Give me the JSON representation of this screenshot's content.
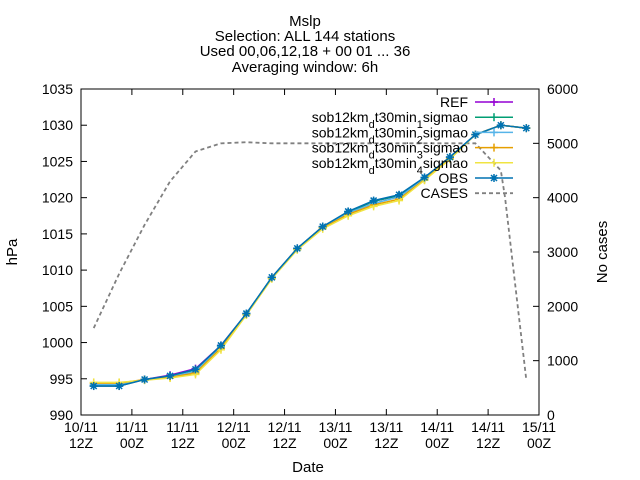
{
  "chart_data": {
    "type": "line",
    "title_lines": [
      "Mslp",
      "Selection: ALL     144 stations",
      "Used 00,06,12,18 + 00 01 ... 36",
      "Averaging window:  6h"
    ],
    "xlabel": "Date",
    "ylabel": "hPa",
    "y2label": "No cases",
    "x_tick_labels": [
      [
        "10/11",
        "12Z"
      ],
      [
        "11/11",
        "00Z"
      ],
      [
        "11/11",
        "12Z"
      ],
      [
        "12/11",
        "00Z"
      ],
      [
        "12/11",
        "12Z"
      ],
      [
        "13/11",
        "00Z"
      ],
      [
        "13/11",
        "12Z"
      ],
      [
        "14/11",
        "00Z"
      ],
      [
        "14/11",
        "12Z"
      ],
      [
        "15/11",
        "00Z"
      ]
    ],
    "x_range_hours": [
      0,
      108
    ],
    "ylim": [
      990,
      1035
    ],
    "yticks": [
      990,
      995,
      1000,
      1005,
      1010,
      1015,
      1020,
      1025,
      1030,
      1035
    ],
    "y2lim": [
      0,
      6000
    ],
    "y2ticks": [
      0,
      1000,
      2000,
      3000,
      4000,
      5000,
      6000
    ],
    "legend_position": "top-right",
    "x": [
      3,
      9,
      15,
      21,
      27,
      33,
      39,
      45,
      51,
      57,
      63,
      69,
      75,
      81,
      87,
      93,
      99,
      105
    ],
    "series": [
      {
        "name": "REF",
        "color": "#9400d3",
        "marker": "plus",
        "values": [
          994.0,
          994.0,
          994.9,
          995.5,
          996.4,
          999.6,
          1004.0,
          1009.0,
          1013.0,
          1016.0,
          1018.0,
          1019.5,
          1020.3,
          1022.7,
          1025.6,
          1028.7,
          1030.0,
          1029.6
        ]
      },
      {
        "name": "sob12km_d t30min_1 sigmao",
        "label_parts": [
          "sob12km",
          "d",
          "t30min",
          "1",
          "sigmao"
        ],
        "color": "#009e73",
        "marker": "plus",
        "values": [
          994.0,
          994.0,
          994.9,
          995.4,
          996.2,
          999.5,
          1004.0,
          1009.0,
          1013.0,
          1016.0,
          1018.0,
          1019.5,
          1020.3,
          1022.7,
          1025.6,
          1028.7,
          1030.0,
          1029.6
        ]
      },
      {
        "name": "sob12km_d t30min_2 sigmao",
        "label_parts": [
          "sob12km",
          "d",
          "t30min",
          "2",
          "sigmao"
        ],
        "color": "#56b4e9",
        "marker": "plus",
        "values": [
          994.2,
          994.2,
          994.9,
          995.3,
          996.0,
          999.4,
          1004.0,
          1009.0,
          1012.9,
          1015.9,
          1017.9,
          1019.2,
          1020.1,
          1022.6,
          1025.5,
          1028.7,
          1030.0,
          1029.6
        ]
      },
      {
        "name": "sob12km_d t30min_3 sigmao",
        "label_parts": [
          "sob12km",
          "d",
          "t30min",
          "3",
          "sigmao"
        ],
        "color": "#e69f00",
        "marker": "plus",
        "values": [
          994.4,
          994.4,
          994.9,
          995.2,
          995.8,
          999.2,
          1003.9,
          1008.9,
          1012.9,
          1015.8,
          1017.7,
          1019.0,
          1019.8,
          1022.5,
          1025.4,
          1028.7,
          1030.0,
          1029.6
        ]
      },
      {
        "name": "sob12km_d t30min_4 sigmao",
        "label_parts": [
          "sob12km",
          "d",
          "t30min",
          "4",
          "sigmao"
        ],
        "color": "#f0e442",
        "marker": "plus",
        "values": [
          994.5,
          994.5,
          994.8,
          995.1,
          995.6,
          999.0,
          1003.8,
          1008.8,
          1012.8,
          1015.7,
          1017.5,
          1018.8,
          1019.6,
          1022.4,
          1025.3,
          1028.7,
          1030.0,
          1029.6
        ]
      },
      {
        "name": "OBS",
        "color": "#0072b2",
        "marker": "star",
        "values": [
          994.0,
          994.0,
          994.9,
          995.4,
          996.3,
          999.6,
          1004.0,
          1009.0,
          1013.0,
          1016.0,
          1018.1,
          1019.6,
          1020.4,
          1022.8,
          1025.6,
          1028.7,
          1030.0,
          1029.6
        ]
      }
    ],
    "cases": {
      "name": "CASES",
      "color": "#808080",
      "axis": "y2",
      "style": "dashed",
      "x": [
        3,
        9,
        15,
        21,
        27,
        29,
        33,
        39,
        45,
        51,
        57,
        63,
        69,
        75,
        81,
        87,
        93,
        99,
        100,
        105
      ],
      "values": [
        1600,
        2600,
        3500,
        4300,
        4850,
        4900,
        5000,
        5020,
        5000,
        5000,
        5000,
        5000,
        5000,
        5000,
        5000,
        5000,
        5000,
        4500,
        4000,
        650
      ]
    }
  }
}
